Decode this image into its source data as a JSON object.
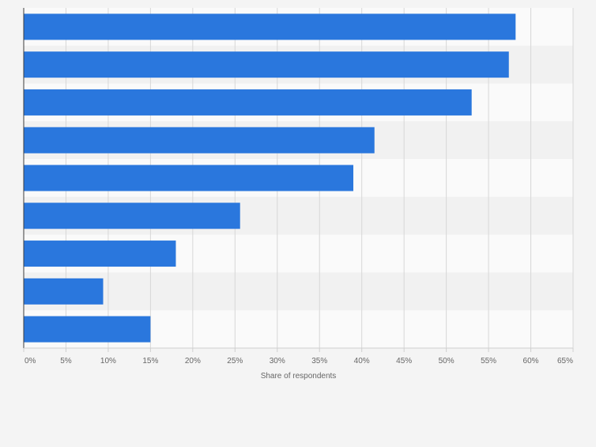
{
  "colors": {
    "bar": "#2a77dd",
    "background": "#f4f4f4",
    "band_light": "#fafafa",
    "band_dark": "#f1f1f1",
    "grid": "#d7d7d7",
    "axis": "#3c3c3c",
    "tick_text": "#666666"
  },
  "chart_data": {
    "type": "bar",
    "orientation": "horizontal",
    "categories": [
      "",
      "",
      "",
      "",
      "",
      "",
      "",
      "",
      ""
    ],
    "values": [
      58.2,
      57.4,
      53.0,
      41.5,
      39.0,
      25.6,
      18.0,
      9.4,
      15.0
    ],
    "xlabel": "Share of respondents",
    "xlim": [
      0,
      65
    ],
    "x_ticks": [
      "0%",
      "5%",
      "10%",
      "15%",
      "20%",
      "25%",
      "30%",
      "35%",
      "40%",
      "45%",
      "50%",
      "55%",
      "60%",
      "65%"
    ],
    "grid": true,
    "legend": "none"
  }
}
